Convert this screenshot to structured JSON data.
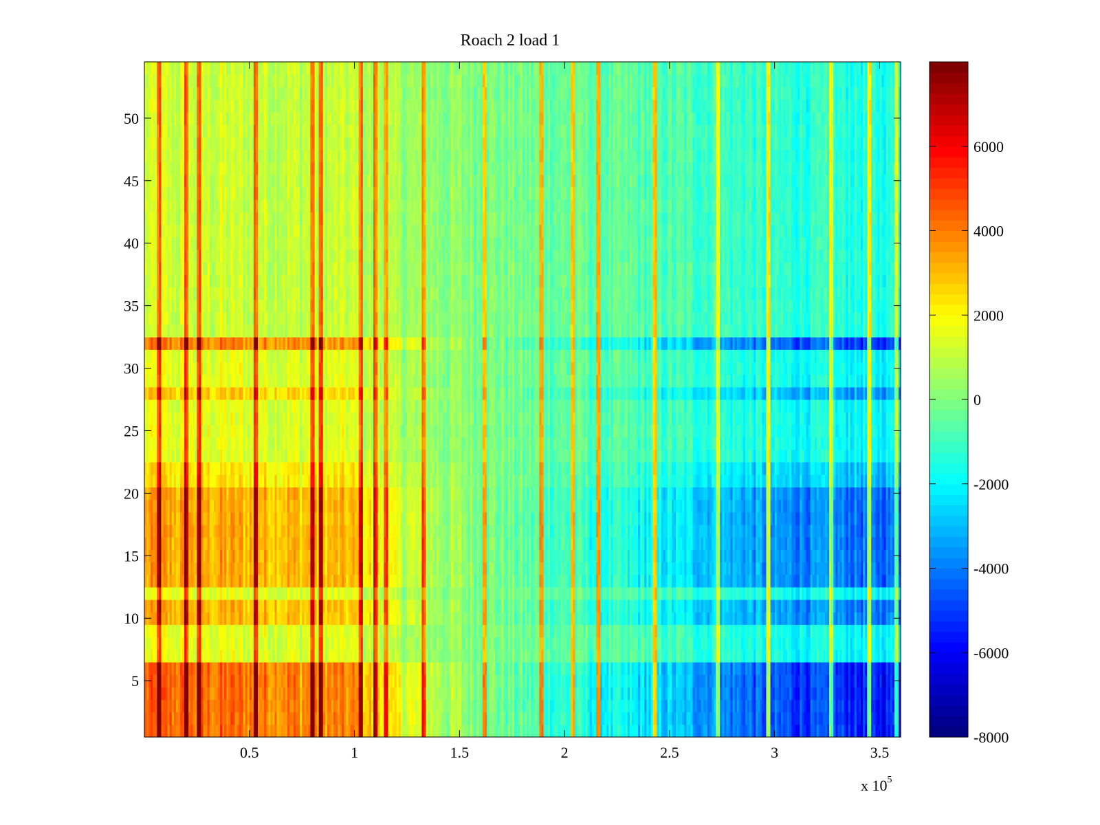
{
  "chart_data": {
    "type": "heatmap",
    "title": "Roach 2 load 1",
    "xlabel": "",
    "ylabel": "",
    "x_multiplier_label": {
      "base": "x 10",
      "exponent": "5"
    },
    "xlim": [
      0,
      3.6
    ],
    "ylim": [
      0.5,
      54.5
    ],
    "x_ticks": [
      0.5,
      1,
      1.5,
      2,
      2.5,
      3,
      3.5
    ],
    "x_tick_labels": [
      "0.5",
      "1",
      "1.5",
      "2",
      "2.5",
      "3",
      "3.5"
    ],
    "y_ticks": [
      5,
      10,
      15,
      20,
      25,
      30,
      35,
      40,
      45,
      50
    ],
    "y_tick_labels": [
      "5",
      "10",
      "15",
      "20",
      "25",
      "30",
      "35",
      "40",
      "45",
      "50"
    ],
    "rows": 54,
    "colorbar": {
      "colormap": "jet",
      "clim": [
        -8000,
        8000
      ],
      "ticks": [
        -8000,
        -6000,
        -4000,
        -2000,
        0,
        2000,
        4000,
        6000
      ],
      "tick_labels": [
        "-8000",
        "-6000",
        "-4000",
        "-2000",
        "0",
        "2000",
        "4000",
        "6000"
      ]
    },
    "column_trend": {
      "x": [
        0,
        0.5,
        1.0,
        1.15,
        1.5,
        2.0,
        2.5,
        3.0,
        3.6
      ],
      "value": [
        2000,
        1900,
        1700,
        900,
        200,
        -600,
        -1300,
        -2200,
        -2600
      ]
    },
    "row_bands": [
      {
        "rows": [
          1,
          6
        ],
        "amplitude": 2.2
      },
      {
        "rows": [
          10,
          11
        ],
        "amplitude": 1.6
      },
      {
        "rows": [
          13,
          20
        ],
        "amplitude": 1.7
      },
      {
        "rows": [
          21,
          22
        ],
        "amplitude": 1.2
      },
      {
        "rows": [
          28,
          28
        ],
        "amplitude": 1.4
      },
      {
        "rows": [
          32,
          32
        ],
        "amplitude": 2.0
      },
      {
        "rows": [
          33,
          54
        ],
        "amplitude": 0.6
      }
    ],
    "streaks_x": [
      0.07,
      0.2,
      0.26,
      0.53,
      0.8,
      0.84,
      1.03,
      1.1,
      1.15,
      1.33,
      1.62,
      1.89,
      2.04,
      2.16,
      2.43,
      2.73,
      2.97,
      3.27,
      3.45,
      3.58
    ]
  }
}
